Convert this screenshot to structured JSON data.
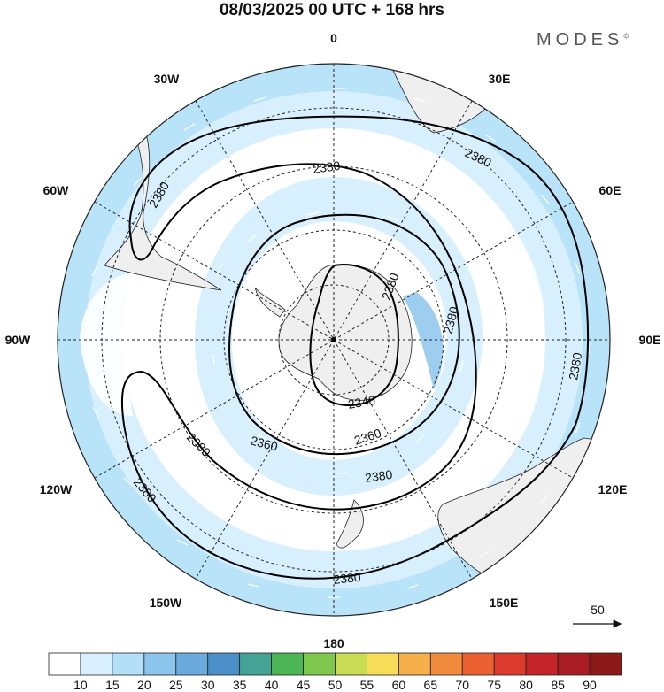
{
  "title": "08/03/2025  00 UTC  + 168 hrs",
  "brand": "MODES",
  "brand_mark": "©",
  "longitude_labels": [
    {
      "label": "0",
      "lon": 0
    },
    {
      "label": "30E",
      "lon": 30
    },
    {
      "label": "60E",
      "lon": 60
    },
    {
      "label": "90E",
      "lon": 90
    },
    {
      "label": "120E",
      "lon": 120
    },
    {
      "label": "150E",
      "lon": 150
    },
    {
      "label": "180",
      "lon": 180
    },
    {
      "label": "150W",
      "lon": -150
    },
    {
      "label": "120W",
      "lon": -120
    },
    {
      "label": "90W",
      "lon": -90
    },
    {
      "label": "60W",
      "lon": -60
    },
    {
      "label": "30W",
      "lon": -30
    }
  ],
  "contour_labels": [
    "2380",
    "2380",
    "2380",
    "2380",
    "2380",
    "2380",
    "2380",
    "2380",
    "2380",
    "2360",
    "2360",
    "2340",
    "2380"
  ],
  "wind_reference": {
    "value": "50"
  },
  "colorbar": {
    "ticks": [
      "10",
      "15",
      "20",
      "25",
      "30",
      "35",
      "40",
      "45",
      "50",
      "55",
      "60",
      "65",
      "70",
      "75",
      "80",
      "85",
      "90"
    ],
    "colors": [
      "#ffffff",
      "#d8f0fd",
      "#b3e0f8",
      "#8cc6ec",
      "#6aaadc",
      "#4a8fc8",
      "#45a395",
      "#4cb655",
      "#7fc84e",
      "#c8dc56",
      "#f8de58",
      "#f5b04c",
      "#f08a3c",
      "#ea6030",
      "#dc3a2c",
      "#c52428",
      "#a81c22",
      "#8c1818"
    ]
  },
  "colors": {
    "land": "#efefef",
    "speed_light": "#d8f0fd",
    "speed_mid": "#b3e0f8",
    "speed_strong": "#8cc6ec",
    "contour": "#000000",
    "grid": "#222222"
  }
}
